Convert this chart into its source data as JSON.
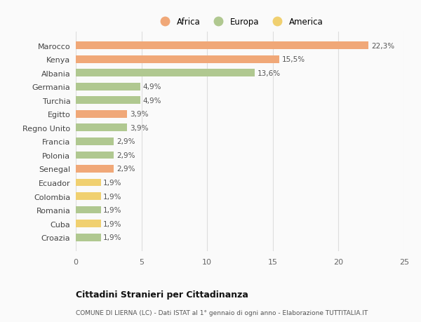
{
  "countries": [
    "Marocco",
    "Kenya",
    "Albania",
    "Germania",
    "Turchia",
    "Egitto",
    "Regno Unito",
    "Francia",
    "Polonia",
    "Senegal",
    "Ecuador",
    "Colombia",
    "Romania",
    "Cuba",
    "Croazia"
  ],
  "values": [
    22.3,
    15.5,
    13.6,
    4.9,
    4.9,
    3.9,
    3.9,
    2.9,
    2.9,
    2.9,
    1.9,
    1.9,
    1.9,
    1.9,
    1.9
  ],
  "labels": [
    "22,3%",
    "15,5%",
    "13,6%",
    "4,9%",
    "4,9%",
    "3,9%",
    "3,9%",
    "2,9%",
    "2,9%",
    "2,9%",
    "1,9%",
    "1,9%",
    "1,9%",
    "1,9%",
    "1,9%"
  ],
  "continents": [
    "Africa",
    "Africa",
    "Europa",
    "Europa",
    "Europa",
    "Africa",
    "Europa",
    "Europa",
    "Europa",
    "Africa",
    "America",
    "America",
    "Europa",
    "America",
    "Europa"
  ],
  "colors": {
    "Africa": "#F0A878",
    "Europa": "#B0C890",
    "America": "#F0D070"
  },
  "bg_color": "#FAFAFA",
  "title": "Cittadini Stranieri per Cittadinanza",
  "subtitle": "COMUNE DI LIERNA (LC) - Dati ISTAT al 1° gennaio di ogni anno - Elaborazione TUTTITALIA.IT",
  "xlim": [
    0,
    25
  ],
  "xticks": [
    0,
    5,
    10,
    15,
    20,
    25
  ]
}
